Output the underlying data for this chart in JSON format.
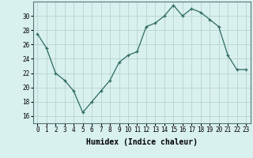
{
  "xlabel": "Humidex (Indice chaleur)",
  "x": [
    0,
    1,
    2,
    3,
    4,
    5,
    6,
    7,
    8,
    9,
    10,
    11,
    12,
    13,
    14,
    15,
    16,
    17,
    18,
    19,
    20,
    21,
    22,
    23
  ],
  "y": [
    27.5,
    25.5,
    22,
    21,
    19.5,
    16.5,
    18,
    19.5,
    21,
    23.5,
    24.5,
    25,
    28.5,
    29,
    30,
    31.5,
    30,
    31,
    30.5,
    29.5,
    28.5,
    24.5,
    22.5,
    22.5
  ],
  "ylim": [
    15,
    32
  ],
  "yticks": [
    16,
    18,
    20,
    22,
    24,
    26,
    28,
    30
  ],
  "xlim": [
    -0.5,
    23.5
  ],
  "line_color": "#2e6b5e",
  "marker": "+",
  "bg_color": "#d8f0ee",
  "grid_color": "#b8d4d0",
  "tick_fontsize": 5.5,
  "label_fontsize": 7.0
}
